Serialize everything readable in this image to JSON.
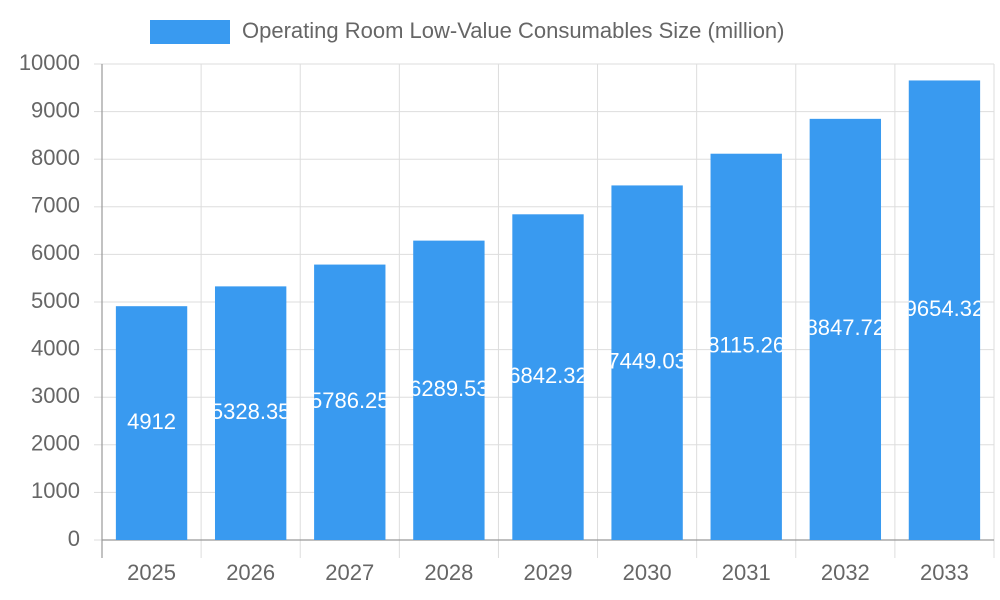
{
  "chart_data": {
    "type": "bar",
    "legend": "Operating Room Low-Value Consumables Size (million)",
    "categories": [
      "2025",
      "2026",
      "2027",
      "2028",
      "2029",
      "2030",
      "2031",
      "2032",
      "2033"
    ],
    "values": [
      4912,
      5328.35,
      5786.25,
      6289.53,
      6842.32,
      7449.03,
      8115.26,
      8847.72,
      9654.32
    ],
    "color": "#399af0",
    "ylim": [
      0,
      10000
    ],
    "yticks": [
      0,
      1000,
      2000,
      3000,
      4000,
      5000,
      6000,
      7000,
      8000,
      9000,
      10000
    ],
    "grid": true,
    "data_labels": true
  }
}
